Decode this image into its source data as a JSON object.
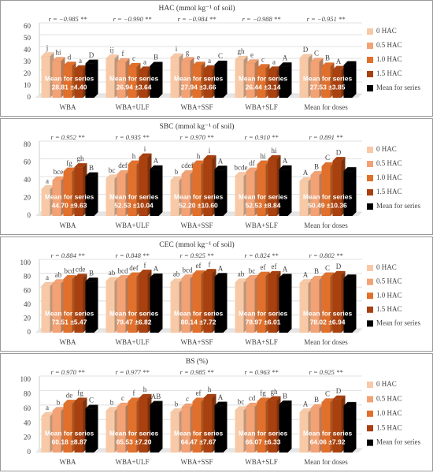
{
  "chart_data": [
    {
      "type": "bar",
      "title": "HAC (mmol kg⁻¹ of soil)",
      "categories": [
        "WBA",
        "WBA+ULF",
        "WBA+SSF",
        "WBA+SLF",
        "Mean for doses"
      ],
      "ylim": [
        0,
        60
      ],
      "yticks": [
        0,
        10,
        20,
        30,
        40,
        50,
        60
      ],
      "grid": true,
      "r_labels": [
        "r = −0.985 **",
        "r = −0.990 **",
        "r = −0.984 **",
        "r = −0.988 **",
        "r = −0.951 **"
      ],
      "mean_labels": [
        "28.81 ±4.40",
        "26.94 ±3.64",
        "27.94 ±3.66",
        "26.44 ±3.14",
        "27.53 ±3.85"
      ],
      "series": [
        {
          "name": "0 HAC",
          "color": "#f8c9a6",
          "values": [
            35,
            33,
            34,
            32,
            33.5
          ],
          "letters": [
            "j",
            "ij",
            "i",
            "gh",
            "D"
          ]
        },
        {
          "name": "0.5 HAC",
          "color": "#f2a274",
          "values": [
            31,
            30,
            31,
            29,
            30.3
          ],
          "letters": [
            "hi",
            "f",
            "g",
            "e",
            "C"
          ]
        },
        {
          "name": "1.0 HAC",
          "color": "#e0702c",
          "values": [
            27,
            26,
            27,
            25,
            26.3
          ],
          "letters": [
            "d",
            "c",
            "e",
            "c",
            "B"
          ]
        },
        {
          "name": "1.5 HAC",
          "color": "#a8410f",
          "values": [
            24,
            23,
            24,
            23,
            23.5
          ],
          "letters": [
            "a",
            "a",
            "a",
            "a",
            "A"
          ]
        },
        {
          "name": "Mean for series",
          "color": "#000000",
          "values": [
            28.81,
            26.94,
            27.94,
            26.44,
            27.53
          ],
          "letters": [
            "D",
            "B",
            "C",
            "A",
            null
          ]
        }
      ]
    },
    {
      "type": "bar",
      "title": "SBC (mmol kg⁻¹ of soil)",
      "categories": [
        "WBA",
        "WBA+ULF",
        "WBA+SSF",
        "WBA+SLF",
        "Mean for doses"
      ],
      "ylim": [
        0,
        80
      ],
      "yticks": [
        0,
        20,
        40,
        60,
        80
      ],
      "grid": true,
      "r_labels": [
        "r = 0.952 **",
        "r = 0.935 **",
        "r = 0.970 **",
        "r = 0.910 **",
        "r = 0.891 **"
      ],
      "mean_labels": [
        "44.70 ±9.63",
        "52.53 ±10.04",
        "52.20 ±10.60",
        "52.53 ±8.84",
        "50.49 ±10.36"
      ],
      "series": [
        {
          "name": "0 HAC",
          "color": "#f8c9a6",
          "values": [
            30,
            42,
            40,
            45,
            39
          ],
          "letters": [
            "a",
            "bc",
            "b",
            "bcde",
            "A"
          ]
        },
        {
          "name": "0.5 HAC",
          "color": "#f2a274",
          "values": [
            40,
            47,
            47,
            50,
            46
          ],
          "letters": [
            "bce",
            "def",
            "cdef",
            "df",
            "B"
          ]
        },
        {
          "name": "1.0 HAC",
          "color": "#e0702c",
          "values": [
            50,
            58,
            58,
            58,
            56
          ],
          "letters": [
            "fg",
            "h",
            "h",
            "hi",
            "C"
          ]
        },
        {
          "name": "1.5 HAC",
          "color": "#a8410f",
          "values": [
            55,
            66,
            64,
            64,
            62
          ],
          "letters": [
            "gh",
            "i",
            "i",
            "hi",
            "D"
          ]
        },
        {
          "name": "Mean for series",
          "color": "#000000",
          "values": [
            44.7,
            52.53,
            52.2,
            52.53,
            50.49
          ],
          "letters": [
            "B",
            "A",
            "A",
            "A",
            null
          ]
        }
      ]
    },
    {
      "type": "bar",
      "title": "CEC (mmol kg⁻¹ of soil)",
      "categories": [
        "WBA",
        "WBA+ULF",
        "WBA+SSF",
        "WBA+SLF",
        "Mean for doses"
      ],
      "ylim": [
        0,
        100
      ],
      "yticks": [
        0,
        20,
        40,
        60,
        80,
        100
      ],
      "grid": true,
      "r_labels": [
        "r = 0.884 **",
        "r = 0.848 **",
        "r = 0.925 **",
        "r = 0.824 **",
        "r = 0.802 **"
      ],
      "mean_labels": [
        "73.51 ±5.47",
        "79.47 ±6.82",
        "80.14 ±7.72",
        "78.97 ±6.01",
        "78.02 ±6.94"
      ],
      "series": [
        {
          "name": "0 HAC",
          "color": "#f8c9a6",
          "values": [
            67,
            74,
            72,
            72,
            71
          ],
          "letters": [
            "a",
            "ab",
            "ab",
            "ab",
            "A"
          ]
        },
        {
          "name": "0.5 HAC",
          "color": "#f2a274",
          "values": [
            71,
            77,
            78,
            77,
            76
          ],
          "letters": [
            "ab",
            "bcd",
            "bcd",
            "bc",
            "B"
          ]
        },
        {
          "name": "1.0 HAC",
          "color": "#e0702c",
          "values": [
            77,
            81,
            84,
            82,
            81
          ],
          "letters": [
            "bcd",
            "def",
            "ef",
            "ef",
            "C"
          ]
        },
        {
          "name": "1.5 HAC",
          "color": "#a8410f",
          "values": [
            79,
            85,
            86,
            83,
            83
          ],
          "letters": [
            "cde",
            "f",
            "f",
            "ef",
            "D"
          ]
        },
        {
          "name": "Mean for series",
          "color": "#000000",
          "values": [
            73.51,
            79.47,
            80.14,
            78.97,
            78.02
          ],
          "letters": [
            "B",
            "A",
            "A",
            "A",
            null
          ]
        }
      ]
    },
    {
      "type": "bar",
      "title": "BS (%)",
      "categories": [
        "WBA",
        "WBA+ULF",
        "WBA+SSF",
        "WBA+SLF",
        "Mean for doses"
      ],
      "ylim": [
        0,
        100
      ],
      "yticks": [
        0,
        20,
        40,
        60,
        80,
        100
      ],
      "grid": true,
      "r_labels": [
        "r = 0.970 **",
        "r = 0.977 **",
        "r = 0.985 **",
        "r = 0.963 **",
        "r = 0.925 **"
      ],
      "mean_labels": [
        "60.18 ±8.87",
        "65.53 ±7.20",
        "64.47 ±7.67",
        "66.07 ±6.33",
        "64.06 ±7.92"
      ],
      "series": [
        {
          "name": "0 HAC",
          "color": "#f8c9a6",
          "values": [
            50,
            57,
            55,
            58,
            55
          ],
          "letters": [
            "a",
            "b",
            "b",
            "bc",
            "A"
          ]
        },
        {
          "name": "0.5 HAC",
          "color": "#f2a274",
          "values": [
            57,
            63,
            62,
            63,
            61
          ],
          "letters": [
            "b",
            "c",
            "c",
            "cd",
            "B"
          ]
        },
        {
          "name": "1.0 HAC",
          "color": "#e0702c",
          "values": [
            67,
            70,
            70,
            70,
            69
          ],
          "letters": [
            "de",
            "f",
            "ef",
            "fg",
            "C"
          ]
        },
        {
          "name": "1.5 HAC",
          "color": "#a8410f",
          "values": [
            70,
            75,
            75,
            72,
            73
          ],
          "letters": [
            "fg",
            "h",
            "h",
            "gh",
            "D"
          ]
        },
        {
          "name": "Mean for series",
          "color": "#000000",
          "values": [
            60.18,
            65.53,
            64.47,
            66.07,
            64.06
          ],
          "letters": [
            "C",
            "AB",
            "A",
            "B",
            null
          ]
        }
      ]
    }
  ]
}
